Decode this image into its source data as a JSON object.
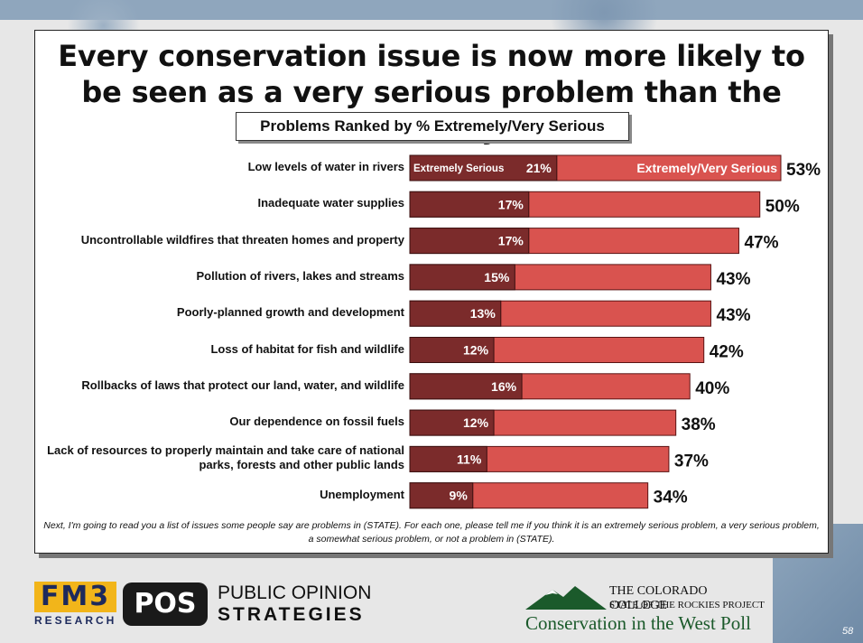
{
  "slide": {
    "headline": "Every conservation issue is now more likely to be seen as a very serious problem than the economy.",
    "subtitle": "Problems Ranked by % Extremely/Very Serious",
    "footnote": "Next, I'm going to read you a list of issues some people say are problems in (STATE). For each one, please tell me if you think it is an extremely serious problem, a very serious problem, a somewhat serious problem, or not a problem in (STATE).",
    "page_number": "58"
  },
  "chart_data": {
    "type": "bar",
    "orientation": "horizontal",
    "categories": [
      "Low levels of water in rivers",
      "Inadequate water supplies",
      "Uncontrollable wildfires that threaten homes and property",
      "Pollution of rivers, lakes and streams",
      "Poorly-planned growth and development",
      "Loss of habitat for fish and wildlife",
      "Rollbacks of laws that protect our land, water, and wildlife",
      "Our dependence on fossil fuels",
      "Lack of resources to properly maintain and take care of national parks, forests and other public lands",
      "Unemployment"
    ],
    "series": [
      {
        "name": "Extremely Serious",
        "values": [
          21,
          17,
          17,
          15,
          13,
          12,
          16,
          12,
          11,
          9
        ],
        "color": "#7b2b2b"
      },
      {
        "name": "Extremely/Very Serious",
        "values": [
          53,
          50,
          47,
          43,
          43,
          42,
          40,
          38,
          37,
          34
        ],
        "color": "#d9534f"
      }
    ],
    "value_labels": {
      "inner": [
        "21%",
        "17%",
        "17%",
        "15%",
        "13%",
        "12%",
        "16%",
        "12%",
        "11%",
        "9%"
      ],
      "outer": [
        "53%",
        "50%",
        "47%",
        "43%",
        "43%",
        "42%",
        "40%",
        "38%",
        "37%",
        "34%"
      ]
    },
    "xlim": [
      0,
      53
    ],
    "grid": false
  },
  "logos": {
    "fm3_top": "FM3",
    "fm3_bottom": "RESEARCH",
    "pos_mark": "POS",
    "pos_line1": "PUBLIC OPINION",
    "pos_line2": "STRATEGIES",
    "cc_line1": "THE COLORADO COLLEGE",
    "cc_line2": "STATE OF THE ROCKIES PROJECT",
    "cc_line3": "Conservation in the West Poll"
  }
}
